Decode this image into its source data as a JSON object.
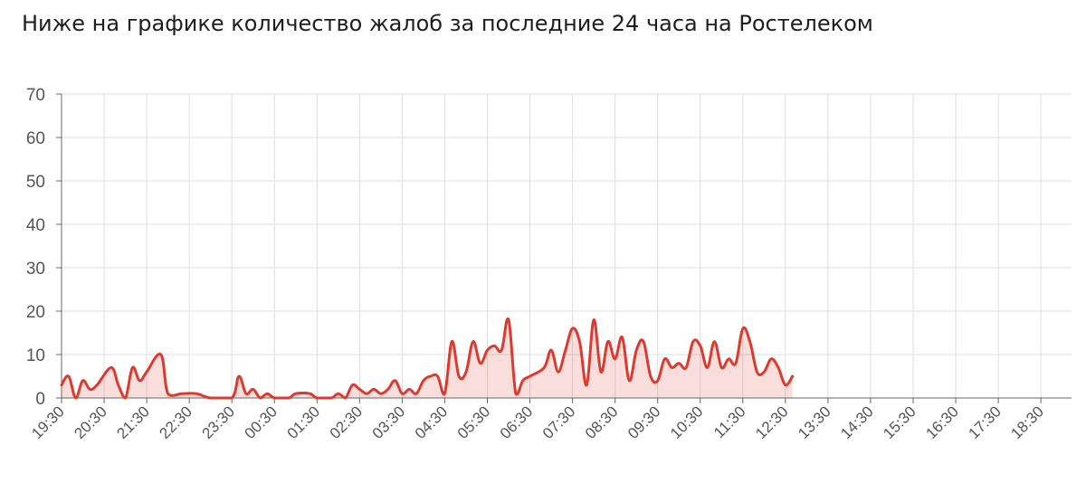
{
  "title": "Ниже на графике количество жалоб за последние 24 часа на Ростелеком",
  "colors": {
    "line": "#dc3a2f",
    "fill": "rgba(220,58,47,0.17)",
    "grid": "#dedede",
    "axis": "#666666",
    "text": "#555555"
  },
  "chart_data": {
    "type": "area",
    "title": "Ниже на графике количество жалоб за последние 24 часа на Ростелеком",
    "xlabel": "",
    "ylabel": "",
    "ylim": [
      0,
      70
    ],
    "yticks": [
      0,
      10,
      20,
      30,
      40,
      50,
      60,
      70
    ],
    "xticks": [
      "19:30",
      "20:30",
      "21:30",
      "22:30",
      "23:30",
      "00:30",
      "01:30",
      "02:30",
      "03:30",
      "04:30",
      "05:30",
      "06:30",
      "07:30",
      "08:30",
      "09:30",
      "10:30",
      "11:30",
      "12:30",
      "13:30",
      "14:30",
      "15:30",
      "16:30",
      "17:30",
      "18:30"
    ],
    "grid": true,
    "series": [
      {
        "points": [
          [
            "19:30",
            3
          ],
          [
            "19:40",
            5
          ],
          [
            "19:50",
            0
          ],
          [
            "20:00",
            4
          ],
          [
            "20:10",
            2
          ],
          [
            "20:20",
            3
          ],
          [
            "20:40",
            7
          ],
          [
            "20:50",
            3
          ],
          [
            "21:00",
            0
          ],
          [
            "21:10",
            7
          ],
          [
            "21:20",
            4
          ],
          [
            "21:30",
            6
          ],
          [
            "21:50",
            10
          ],
          [
            "22:00",
            1
          ],
          [
            "22:20",
            1
          ],
          [
            "22:40",
            1
          ],
          [
            "23:00",
            0
          ],
          [
            "23:30",
            0
          ],
          [
            "23:40",
            5
          ],
          [
            "23:50",
            1
          ],
          [
            "24:00",
            2
          ],
          [
            "24:10",
            0
          ],
          [
            "24:20",
            1
          ],
          [
            "24:30",
            0
          ],
          [
            "24:50",
            0
          ],
          [
            "25:00",
            1
          ],
          [
            "25:20",
            1
          ],
          [
            "25:30",
            0
          ],
          [
            "25:50",
            0
          ],
          [
            "26:00",
            1
          ],
          [
            "26:10",
            0
          ],
          [
            "26:20",
            3
          ],
          [
            "26:30",
            2
          ],
          [
            "26:40",
            1
          ],
          [
            "26:50",
            2
          ],
          [
            "27:00",
            1
          ],
          [
            "27:10",
            2
          ],
          [
            "27:20",
            4
          ],
          [
            "27:30",
            1
          ],
          [
            "27:40",
            2
          ],
          [
            "27:50",
            1
          ],
          [
            "28:00",
            4
          ],
          [
            "28:10",
            5
          ],
          [
            "28:20",
            5
          ],
          [
            "28:30",
            1
          ],
          [
            "28:40",
            13
          ],
          [
            "28:50",
            5
          ],
          [
            "29:00",
            6
          ],
          [
            "29:10",
            13
          ],
          [
            "29:20",
            8
          ],
          [
            "29:30",
            11
          ],
          [
            "29:40",
            12
          ],
          [
            "29:50",
            11
          ],
          [
            "30:00",
            18
          ],
          [
            "30:10",
            1
          ],
          [
            "30:20",
            4
          ],
          [
            "30:30",
            5
          ],
          [
            "30:50",
            7
          ],
          [
            "31:00",
            11
          ],
          [
            "31:10",
            6
          ],
          [
            "31:20",
            11
          ],
          [
            "31:30",
            16
          ],
          [
            "31:40",
            13
          ],
          [
            "31:50",
            3
          ],
          [
            "32:00",
            18
          ],
          [
            "32:10",
            6
          ],
          [
            "32:20",
            13
          ],
          [
            "32:30",
            9
          ],
          [
            "32:40",
            14
          ],
          [
            "32:50",
            4
          ],
          [
            "33:00",
            11
          ],
          [
            "33:10",
            13
          ],
          [
            "33:20",
            5
          ],
          [
            "33:30",
            4
          ],
          [
            "33:40",
            9
          ],
          [
            "33:50",
            7
          ],
          [
            "34:00",
            8
          ],
          [
            "34:10",
            7
          ],
          [
            "34:20",
            13
          ],
          [
            "34:30",
            12
          ],
          [
            "34:40",
            7
          ],
          [
            "34:50",
            13
          ],
          [
            "35:00",
            7
          ],
          [
            "35:10",
            9
          ],
          [
            "35:20",
            8
          ],
          [
            "35:30",
            16
          ],
          [
            "35:40",
            13
          ],
          [
            "35:50",
            6
          ],
          [
            "36:00",
            6
          ],
          [
            "36:10",
            9
          ],
          [
            "36:20",
            7
          ],
          [
            "36:30",
            3
          ],
          [
            "36:40",
            5
          ]
        ]
      }
    ]
  }
}
